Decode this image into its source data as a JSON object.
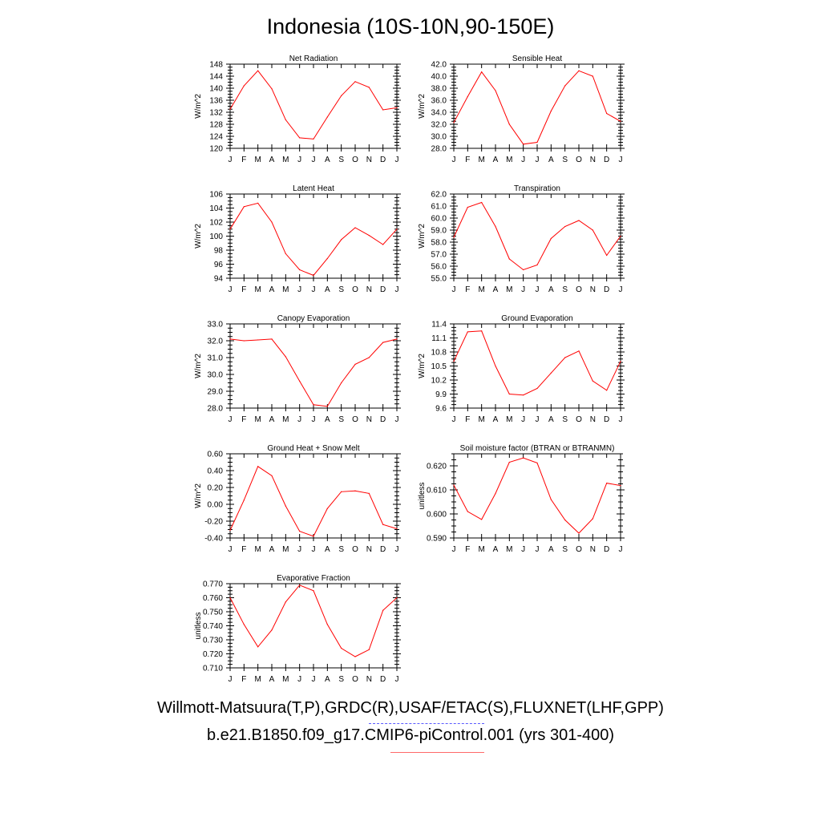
{
  "title": "Indonesia (10S-10N,90-150E)",
  "months": [
    "J",
    "F",
    "M",
    "A",
    "M",
    "J",
    "J",
    "A",
    "S",
    "O",
    "N",
    "D",
    "J"
  ],
  "legend": {
    "obs_label": "Willmott-Matsuura(T,P),GRDC(R),USAF/ETAC(S),FLUXNET(LHF,GPP)",
    "obs_color": "#5a5aff",
    "model_label": "b.e21.B1850.f09_g17.CMIP6-piControl.001 (yrs 301-400)",
    "model_color": "#ff0000"
  },
  "chart_data": [
    {
      "type": "line",
      "title": "Net Radiation",
      "ylabel": "W/m^2",
      "ylim": [
        120,
        148
      ],
      "yticks": [
        120,
        124,
        128,
        132,
        136,
        140,
        144,
        148
      ],
      "decimals": 0,
      "series": [
        {
          "values": [
            133.0,
            140.8,
            145.8,
            139.8,
            129.5,
            123.5,
            123.1,
            130.4,
            137.5,
            142.2,
            140.3,
            132.8,
            133.5
          ]
        }
      ]
    },
    {
      "type": "line",
      "title": "Sensible Heat",
      "ylabel": "W/m^2",
      "ylim": [
        28,
        42
      ],
      "yticks": [
        28,
        30,
        32,
        34,
        36,
        38,
        40,
        42
      ],
      "decimals": 1,
      "series": [
        {
          "values": [
            32.3,
            36.6,
            40.7,
            37.6,
            32.0,
            28.7,
            29.0,
            34.2,
            38.4,
            40.9,
            40.0,
            33.8,
            32.5
          ]
        }
      ]
    },
    {
      "type": "line",
      "title": "Latent Heat",
      "ylabel": "W/m^2",
      "ylim": [
        94,
        106
      ],
      "yticks": [
        94,
        96,
        98,
        100,
        102,
        104,
        106
      ],
      "decimals": 0,
      "series": [
        {
          "values": [
            101.0,
            104.2,
            104.7,
            102.0,
            97.5,
            95.2,
            94.4,
            96.8,
            99.5,
            101.2,
            100.1,
            98.8,
            101.0
          ]
        }
      ]
    },
    {
      "type": "line",
      "title": "Transpiration",
      "ylabel": "W/m^2",
      "ylim": [
        55,
        62
      ],
      "yticks": [
        55,
        56,
        57,
        58,
        59,
        60,
        61,
        62
      ],
      "decimals": 1,
      "series": [
        {
          "values": [
            58.4,
            60.9,
            61.3,
            59.3,
            56.6,
            55.7,
            56.1,
            58.3,
            59.3,
            59.8,
            59.0,
            56.9,
            58.5
          ]
        }
      ]
    },
    {
      "type": "line",
      "title": "Canopy Evaporation",
      "ylabel": "W/m^2",
      "ylim": [
        28,
        33
      ],
      "yticks": [
        28,
        29,
        30,
        31,
        32,
        33
      ],
      "decimals": 1,
      "series": [
        {
          "values": [
            32.1,
            32.0,
            32.05,
            32.1,
            31.05,
            29.6,
            28.2,
            28.1,
            29.5,
            30.6,
            31.0,
            31.9,
            32.1
          ]
        }
      ]
    },
    {
      "type": "line",
      "title": "Ground Evaporation",
      "ylabel": "W/m^2",
      "ylim": [
        9.6,
        11.4
      ],
      "yticks": [
        9.6,
        9.9,
        10.2,
        10.5,
        10.8,
        11.1,
        11.4
      ],
      "decimals": 1,
      "series": [
        {
          "values": [
            10.6,
            11.23,
            11.25,
            10.5,
            9.9,
            9.88,
            10.02,
            10.35,
            10.68,
            10.82,
            10.18,
            9.98,
            10.6
          ]
        }
      ]
    },
    {
      "type": "line",
      "title": "Ground Heat + Snow Melt",
      "ylabel": "W/m^2",
      "ylim": [
        -0.4,
        0.6
      ],
      "yticks": [
        -0.4,
        -0.2,
        0,
        0.2,
        0.4,
        0.6
      ],
      "decimals": 2,
      "series": [
        {
          "values": [
            -0.31,
            0.05,
            0.45,
            0.34,
            -0.02,
            -0.32,
            -0.38,
            -0.05,
            0.15,
            0.16,
            0.13,
            -0.24,
            -0.29
          ]
        }
      ]
    },
    {
      "type": "line",
      "title": "Soil moisture factor (BTRAN or BTRANMN)",
      "ylabel": "unitless",
      "ylim": [
        0.59,
        0.625
      ],
      "yticks": [
        0.59,
        0.6,
        0.61,
        0.62
      ],
      "decimals": 3,
      "series": [
        {
          "values": [
            0.612,
            0.601,
            0.5977,
            0.6085,
            0.6215,
            0.6233,
            0.6212,
            0.606,
            0.5975,
            0.592,
            0.598,
            0.6128,
            0.6118
          ]
        }
      ]
    },
    {
      "type": "line",
      "title": "Evaporative Fraction",
      "ylabel": "unitless",
      "ylim": [
        0.71,
        0.77
      ],
      "yticks": [
        0.71,
        0.72,
        0.73,
        0.74,
        0.75,
        0.76,
        0.77
      ],
      "decimals": 3,
      "series": [
        {
          "values": [
            0.76,
            0.741,
            0.725,
            0.737,
            0.757,
            0.769,
            0.765,
            0.741,
            0.724,
            0.718,
            0.723,
            0.751,
            0.76
          ]
        }
      ]
    }
  ]
}
